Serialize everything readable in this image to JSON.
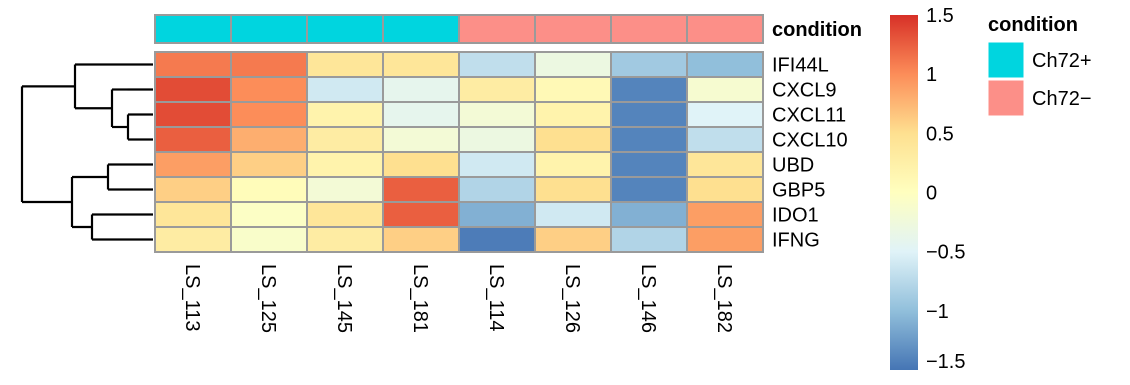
{
  "chart_data": {
    "type": "heatmap",
    "title": "",
    "columns": [
      "LS_113",
      "LS_125",
      "LS_145",
      "LS_181",
      "LS_114",
      "LS_126",
      "LS_146",
      "LS_182"
    ],
    "rows": [
      "IFI44L",
      "CXCL9",
      "CXCL11",
      "CXCL10",
      "UBD",
      "GBP5",
      "IDO1",
      "IFNG"
    ],
    "values": [
      [
        1.1,
        1.1,
        0.4,
        0.4,
        -0.7,
        -0.3,
        -0.9,
        -1.0
      ],
      [
        1.35,
        1.0,
        -0.6,
        -0.4,
        0.3,
        0.1,
        -1.4,
        -0.15
      ],
      [
        1.35,
        1.0,
        0.2,
        -0.4,
        -0.2,
        0.2,
        -1.4,
        -0.5
      ],
      [
        1.25,
        0.8,
        0.3,
        -0.2,
        -0.3,
        0.5,
        -1.4,
        -0.7
      ],
      [
        0.9,
        0.6,
        0.2,
        0.5,
        -0.6,
        0.2,
        -1.4,
        0.4
      ],
      [
        0.6,
        0.05,
        -0.2,
        1.25,
        -0.8,
        0.5,
        -1.4,
        0.5
      ],
      [
        0.4,
        -0.05,
        0.4,
        1.25,
        -1.1,
        -0.6,
        -1.1,
        0.9
      ],
      [
        0.3,
        -0.1,
        0.3,
        0.6,
        -1.45,
        0.6,
        -0.8,
        0.9
      ]
    ],
    "annotation": {
      "label": "condition",
      "values": [
        "Ch72+",
        "Ch72+",
        "Ch72+",
        "Ch72+",
        "Ch72−",
        "Ch72−",
        "Ch72−",
        "Ch72−"
      ]
    },
    "colorbar": {
      "min": -1.5,
      "max": 1.5,
      "ticks": [
        "1.5",
        "1",
        "0.5",
        "0",
        "−0.5",
        "−1",
        "−1.5"
      ],
      "tick_values": [
        1.5,
        1,
        0.5,
        0,
        -0.5,
        -1,
        -1.5
      ],
      "colors": [
        "#4575b4",
        "#91bfdb",
        "#e0f3f8",
        "#ffffbf",
        "#fee090",
        "#fc8d59",
        "#d73027"
      ]
    },
    "legend": {
      "title": "condition",
      "items": [
        {
          "label": "Ch72+",
          "color": "#00d5df"
        },
        {
          "label": "Ch72−",
          "color": "#fc8f88"
        }
      ]
    },
    "row_dendrogram": true,
    "grid": true
  }
}
